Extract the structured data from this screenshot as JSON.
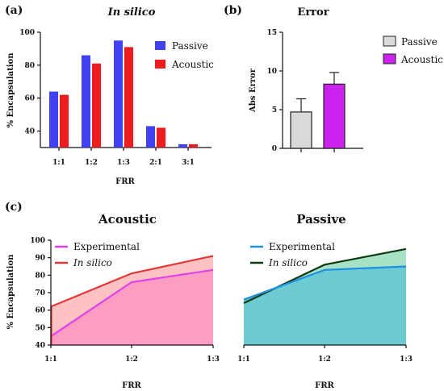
{
  "chart_data": [
    {
      "panel": "(a)",
      "type": "bar",
      "title": "In silico",
      "xlabel": "FRR",
      "ylabel": "% Encapsulation",
      "ylim": [
        30,
        100
      ],
      "yticks": [
        40,
        60,
        80,
        100
      ],
      "categories": [
        "1:1",
        "1:2",
        "1:3",
        "2:1",
        "3:1"
      ],
      "series": [
        {
          "name": "Passive",
          "color": "#4141f0",
          "values": [
            64,
            86,
            95,
            43,
            32
          ]
        },
        {
          "name": "Acoustic",
          "color": "#ee1c1c",
          "values": [
            62,
            81,
            91,
            42,
            32
          ]
        }
      ],
      "legend": "top-right",
      "grid": false
    },
    {
      "panel": "(b)",
      "type": "bar",
      "title": "Error",
      "ylabel": "Abs Error",
      "ylim": [
        0,
        15
      ],
      "yticks": [
        0,
        5,
        10,
        15
      ],
      "categories": [
        "Passive",
        "Acoustic"
      ],
      "values": [
        4.7,
        8.3
      ],
      "errors": [
        1.7,
        1.5
      ],
      "colors": [
        "#d9d9d9",
        "#cc22ee"
      ],
      "legend": "top-right",
      "grid": false
    },
    {
      "panel": "(c)",
      "type": "area",
      "title": "Acoustic",
      "xlabel": "FRR",
      "ylabel": "% Encapsulation",
      "ylim": [
        40,
        100
      ],
      "yticks": [
        40,
        50,
        60,
        70,
        80,
        90,
        100
      ],
      "categories": [
        "1:1",
        "1:2",
        "1:3"
      ],
      "series": [
        {
          "name": "Experimental",
          "color": "#e040e8",
          "fill": "#ff9cc4",
          "values": [
            45,
            76,
            83
          ]
        },
        {
          "name": "In silico",
          "color": "#e03838",
          "fill": "#ffc2c2",
          "values": [
            62,
            81,
            91
          ]
        }
      ],
      "legend": "top-left",
      "grid": false
    },
    {
      "type": "area",
      "title": "Passive",
      "xlabel": "FRR",
      "ylim": [
        40,
        100
      ],
      "categories": [
        "1:1",
        "1:2",
        "1:3"
      ],
      "series": [
        {
          "name": "Experimental",
          "color": "#1f8fe0",
          "fill": "#6ccbd2",
          "values": [
            66,
            83,
            85
          ]
        },
        {
          "name": "In silico",
          "color": "#0f3a12",
          "fill": "#a6e2c6",
          "values": [
            64,
            86,
            95
          ]
        }
      ],
      "legend": "top-left",
      "grid": false
    }
  ]
}
